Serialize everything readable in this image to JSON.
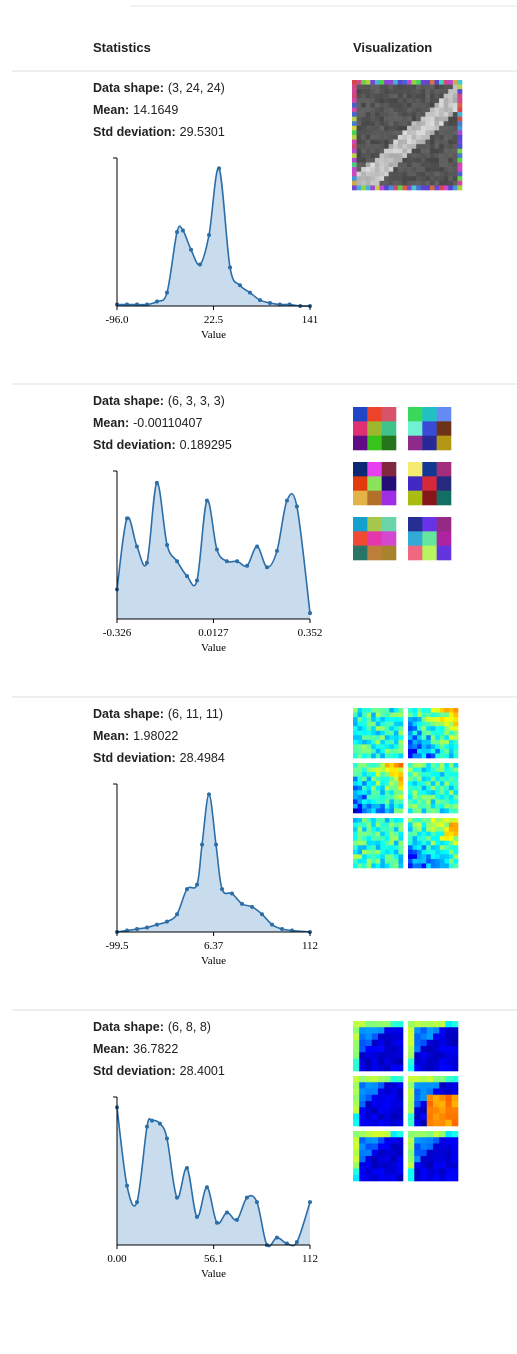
{
  "header": {
    "statistics": "Statistics",
    "visualization": "Visualization"
  },
  "rows": [
    {
      "shape_label": "Data shape:",
      "shape": "(3, 24, 24)",
      "mean_label": "Mean:",
      "mean": "14.1649",
      "std_label": "Std deviation:",
      "std": "29.5301",
      "histogram": {
        "type": "line",
        "xlabel": "Value",
        "xlim": [
          -96,
          141
        ],
        "ylim": [
          0,
          100
        ],
        "xticks": [
          {
            "value": -96,
            "label": "-96.0"
          },
          22.5,
          141
        ],
        "x": [
          -96,
          -83.7,
          -71.4,
          -59.2,
          -46.9,
          -34.6,
          -22.3,
          -15,
          -5.1,
          5.9,
          17,
          29.3,
          42.8,
          55,
          67.3,
          79.6,
          91.9,
          104,
          116,
          129,
          141
        ],
        "values": [
          1,
          1,
          1,
          1,
          3,
          9,
          50,
          51,
          38,
          28,
          48,
          93,
          26,
          14,
          9,
          4,
          2,
          1,
          1,
          0,
          0
        ]
      }
    },
    {
      "shape_label": "Data shape:",
      "shape": "(6, 3, 3, 3)",
      "mean_label": "Mean:",
      "mean": "-0.00110407",
      "std_label": "Std deviation:",
      "std": "0.189295",
      "histogram": {
        "type": "line",
        "xlabel": "Value",
        "xlim": [
          -0.326,
          0.352
        ],
        "ylim": [
          0,
          100
        ],
        "xticks": [
          -0.326,
          0.0127,
          0.352
        ],
        "x": [
          -0.326,
          -0.291,
          -0.256,
          -0.221,
          -0.186,
          -0.15,
          -0.115,
          -0.08,
          -0.045,
          -0.01,
          0.025,
          0.06,
          0.096,
          0.131,
          0.166,
          0.201,
          0.236,
          0.271,
          0.306,
          0.352
        ],
        "values": [
          20,
          68,
          49,
          38,
          92,
          50,
          39,
          29,
          26,
          80,
          47,
          39,
          39,
          36,
          49,
          35,
          46,
          80,
          76,
          4
        ]
      }
    },
    {
      "shape_label": "Data shape:",
      "shape": "(6, 11, 11)",
      "mean_label": "Mean:",
      "mean": "1.98022",
      "std_label": "Std deviation:",
      "std": "28.4984",
      "histogram": {
        "type": "line",
        "xlabel": "Value",
        "xlim": [
          -99.5,
          112
        ],
        "ylim": [
          0,
          100
        ],
        "xticks": [
          -99.5,
          6.37,
          112
        ],
        "x": [
          -99.5,
          -88.5,
          -77.6,
          -66.6,
          -55.7,
          -44.7,
          -33.7,
          -22.8,
          -11.8,
          -6.3,
          1.3,
          9,
          15.6,
          26.5,
          37.5,
          48.5,
          59.4,
          70.4,
          81.3,
          92.3,
          112
        ],
        "values": [
          0,
          1,
          2,
          3,
          5,
          7,
          12,
          29,
          32,
          59,
          93,
          59,
          29,
          26,
          19,
          17,
          12,
          5,
          2,
          1,
          0
        ]
      }
    },
    {
      "shape_label": "Data shape:",
      "shape": "(6, 8, 8)",
      "mean_label": "Mean:",
      "mean": "36.7822",
      "std_label": "Std deviation:",
      "std": "28.4001",
      "histogram": {
        "type": "line",
        "xlabel": "Value",
        "xlim": [
          0,
          112
        ],
        "ylim": [
          0,
          100
        ],
        "xticks": [
          {
            "value": 0,
            "label": "0.00"
          },
          56.1,
          112
        ],
        "x": [
          0,
          5.8,
          11.6,
          17.4,
          20.3,
          24.9,
          29,
          34.8,
          40.6,
          46.4,
          52.2,
          58,
          63.8,
          69.6,
          75.4,
          81.2,
          87,
          92.8,
          98.6,
          104.4,
          112
        ],
        "values": [
          93,
          40,
          29,
          80,
          84,
          82,
          72,
          32,
          52,
          19,
          39,
          15,
          22,
          17,
          32,
          29,
          0,
          5,
          1,
          2,
          29
        ]
      }
    }
  ]
}
